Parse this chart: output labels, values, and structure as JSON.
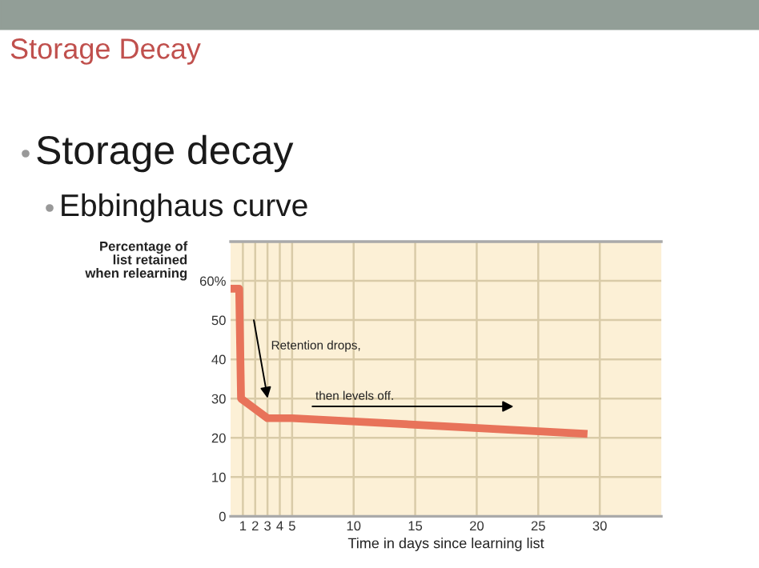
{
  "chart_data": {
    "type": "line",
    "title": "Storage Decay",
    "subtitle": "Storage decay",
    "xlabel": "Time in days since learning list",
    "ylabel": "Percentage of\nlist retained\nwhen relearning",
    "annotations": [
      "Ebbinghaus curve",
      "Retention drops,",
      "then levels off."
    ],
    "x": [
      0,
      0.7,
      0.85,
      3,
      5,
      29
    ],
    "series": [
      {
        "color": "#e8735a",
        "values": [
          58,
          58,
          30,
          25,
          25,
          21
        ]
      }
    ],
    "xlim": [
      0,
      35
    ],
    "xticks": [
      1,
      2,
      3,
      4,
      5,
      10,
      15,
      20,
      25,
      30
    ],
    "ylim": [
      0,
      70
    ],
    "yticks": [
      0,
      10,
      20,
      30,
      40,
      50,
      {
        "value": 60,
        "label": "60%"
      },
      {
        "value": 70,
        "label": null
      }
    ],
    "grid": true,
    "legend": false,
    "marker": "none",
    "line_style": "solid"
  }
}
